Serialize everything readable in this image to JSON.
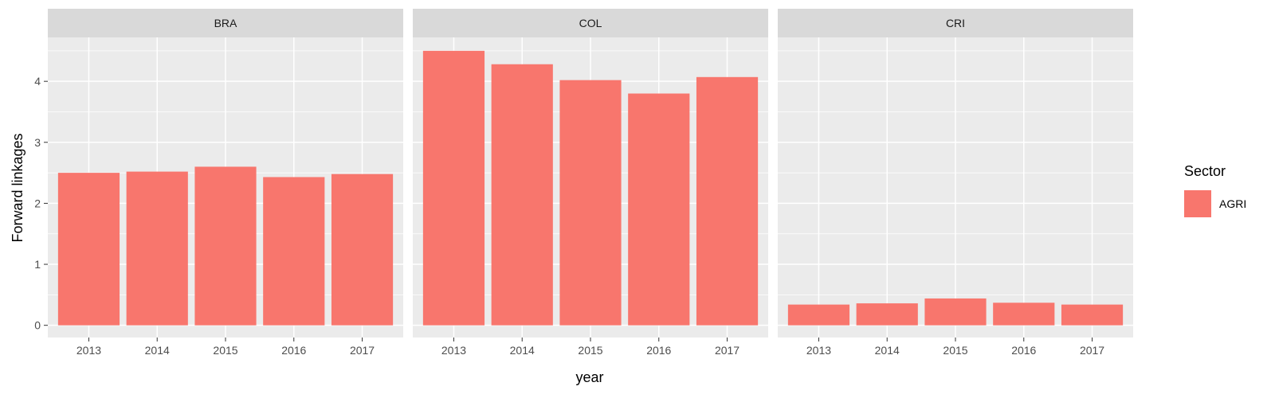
{
  "chart_data": {
    "type": "bar",
    "facet_variable": "country",
    "facets": [
      {
        "label": "BRA",
        "categories": [
          "2013",
          "2014",
          "2015",
          "2016",
          "2017"
        ],
        "values": [
          2.5,
          2.52,
          2.6,
          2.43,
          2.48
        ]
      },
      {
        "label": "COL",
        "categories": [
          "2013",
          "2014",
          "2015",
          "2016",
          "2017"
        ],
        "values": [
          4.5,
          4.28,
          4.02,
          3.8,
          4.07
        ]
      },
      {
        "label": "CRI",
        "categories": [
          "2013",
          "2014",
          "2015",
          "2016",
          "2017"
        ],
        "values": [
          0.34,
          0.36,
          0.44,
          0.37,
          0.34
        ]
      }
    ],
    "xlabel": "year",
    "ylabel": "Forward linkages",
    "ylim": [
      -0.2,
      4.72
    ],
    "yticks": [
      0,
      1,
      2,
      3,
      4
    ],
    "grid": true,
    "legend": {
      "title": "Sector",
      "placement": "right",
      "items": [
        {
          "name": "AGRI",
          "color": "#F8766D"
        }
      ]
    },
    "colors": {
      "bar": "#F8766D",
      "panel_background": "#EBEBEB",
      "strip_background": "#D9D9D9",
      "grid": "#FFFFFF"
    }
  }
}
